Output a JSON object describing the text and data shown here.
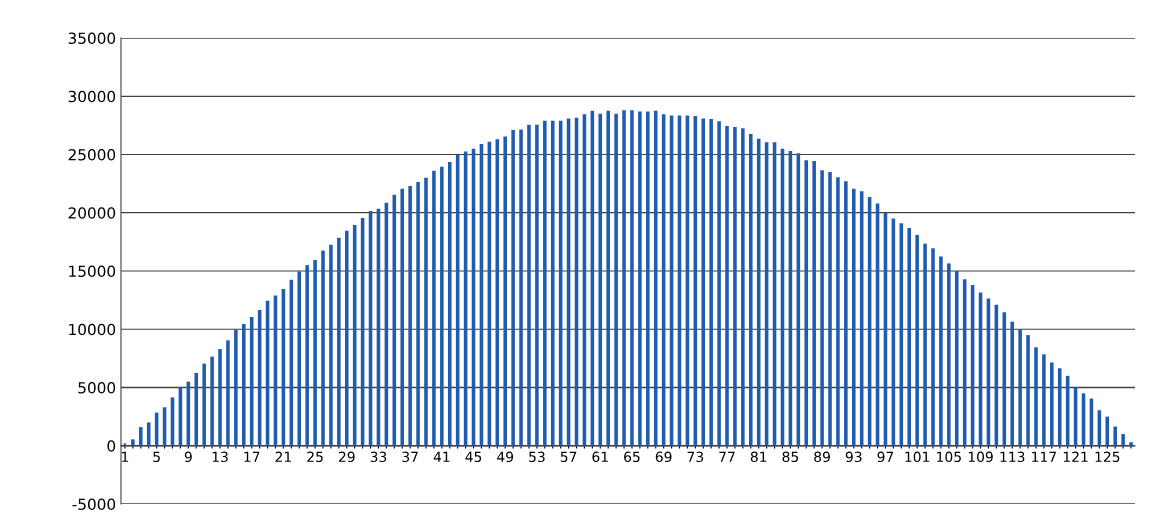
{
  "chart_data": {
    "type": "bar",
    "color": "#1f5cb0",
    "categories": [
      "1",
      null,
      null,
      null,
      "5",
      null,
      null,
      null,
      "9",
      null,
      null,
      null,
      "13",
      null,
      null,
      null,
      "17",
      null,
      null,
      null,
      "21",
      null,
      null,
      null,
      "25",
      null,
      null,
      null,
      "29",
      null,
      null,
      null,
      "33",
      null,
      null,
      null,
      "37",
      null,
      null,
      null,
      "41",
      null,
      null,
      null,
      "45",
      null,
      null,
      null,
      "49",
      null,
      null,
      null,
      "53",
      null,
      null,
      null,
      "57",
      null,
      null,
      null,
      "61",
      null,
      null,
      null,
      "65",
      null,
      null,
      null,
      "69",
      null,
      null,
      null,
      "73",
      null,
      null,
      null,
      "77",
      null,
      null,
      null,
      "81",
      null,
      null,
      null,
      "85",
      null,
      null,
      null,
      "89",
      null,
      null,
      null,
      "93",
      null,
      null,
      null,
      "97",
      null,
      null,
      null,
      "101",
      null,
      null,
      null,
      "105",
      null,
      null,
      null,
      "109",
      null,
      null,
      null,
      "113",
      null,
      null,
      null,
      "117",
      null,
      null,
      null,
      "121",
      null,
      null,
      null,
      "125",
      null,
      null,
      null
    ],
    "values": [
      100,
      550,
      1600,
      2000,
      2850,
      3300,
      4150,
      5000,
      5500,
      6250,
      7050,
      7650,
      8300,
      9050,
      9950,
      10450,
      11050,
      11650,
      12450,
      12900,
      13450,
      14250,
      14950,
      15500,
      15950,
      16750,
      17250,
      17850,
      18450,
      18950,
      19550,
      20150,
      20350,
      20850,
      21550,
      22050,
      22300,
      22650,
      23000,
      23600,
      23950,
      24350,
      24950,
      25250,
      25500,
      25900,
      26100,
      26300,
      26550,
      27100,
      27150,
      27550,
      27550,
      27900,
      27900,
      27900,
      28100,
      28150,
      28450,
      28750,
      28500,
      28750,
      28500,
      28800,
      28800,
      28700,
      28700,
      28750,
      28450,
      28350,
      28350,
      28350,
      28300,
      28100,
      28050,
      27850,
      27450,
      27350,
      27250,
      26750,
      26350,
      26050,
      26050,
      25500,
      25300,
      25100,
      24500,
      24450,
      23650,
      23500,
      23050,
      22700,
      22050,
      21850,
      21350,
      20800,
      20000,
      19500,
      19100,
      18700,
      18100,
      17350,
      16950,
      16250,
      15650,
      15000,
      14300,
      13800,
      13150,
      12650,
      12100,
      11450,
      10650,
      10000,
      9500,
      8450,
      7850,
      7150,
      6650,
      6000,
      5000,
      4500,
      4050,
      3050,
      2500,
      1650,
      1000,
      300
    ],
    "ylim": [
      -5000,
      35000
    ],
    "yticks": [
      -5000,
      0,
      5000,
      10000,
      15000,
      20000,
      25000,
      30000,
      35000
    ],
    "grid": "y"
  }
}
